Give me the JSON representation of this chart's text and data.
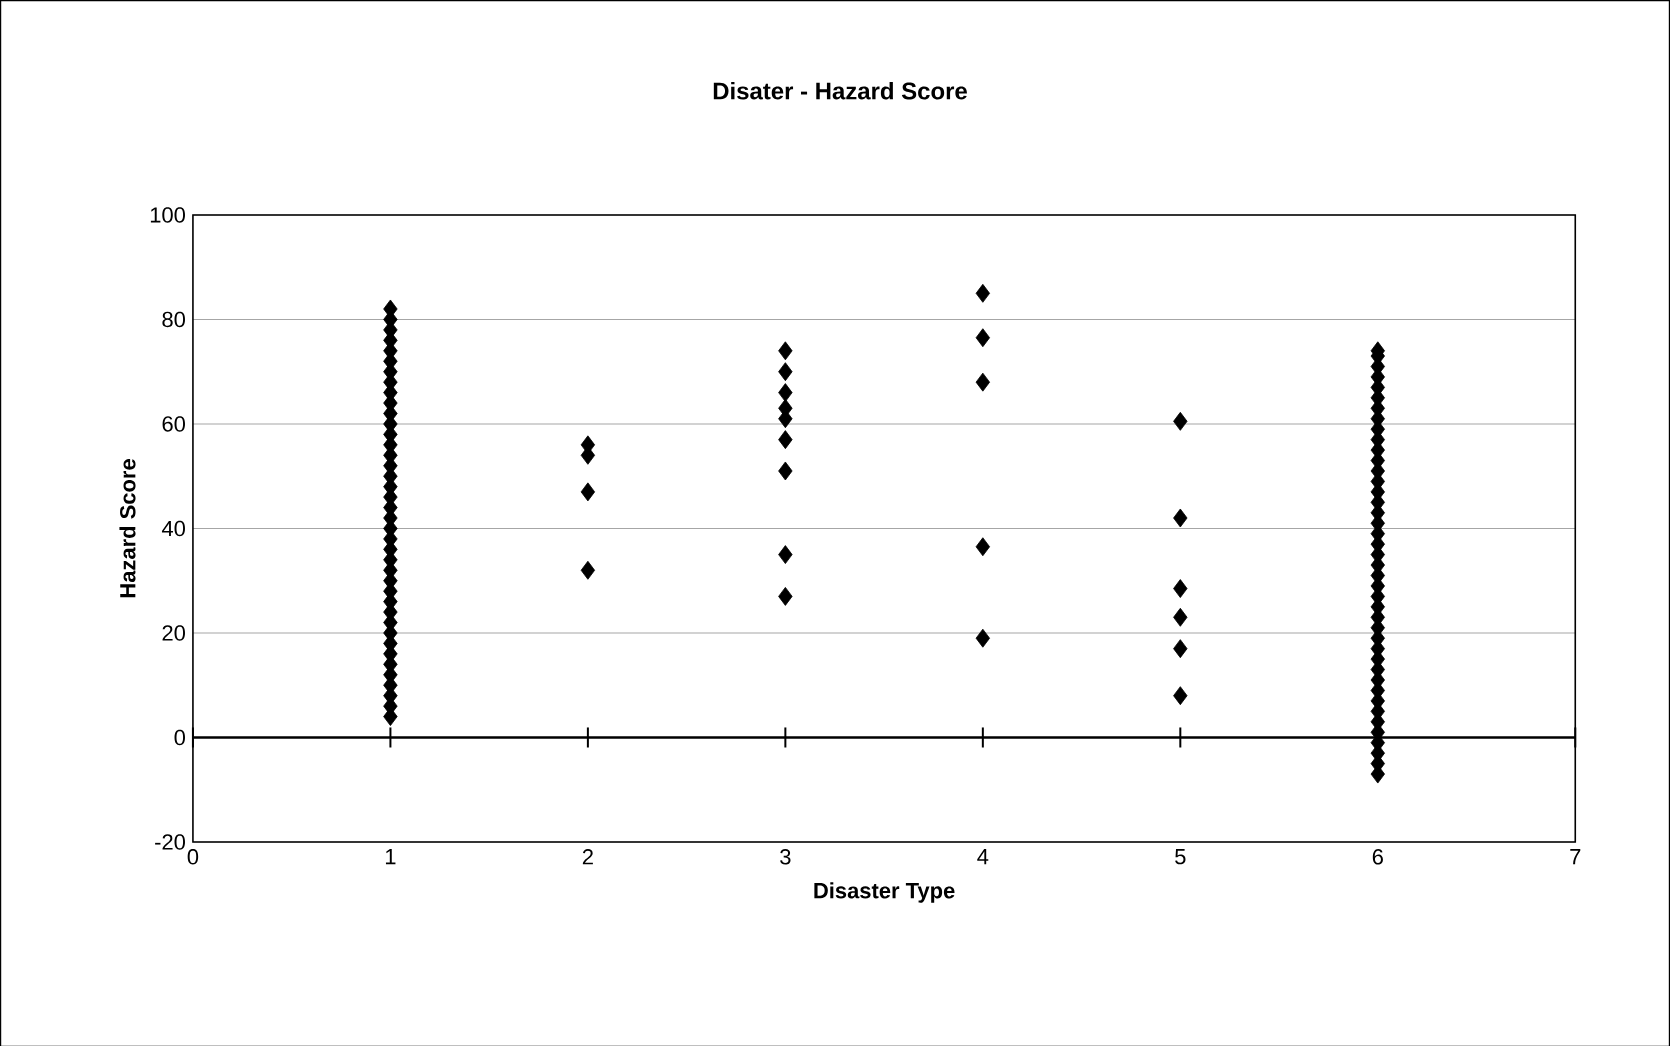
{
  "chart_data": {
    "type": "scatter",
    "title": "Disater - Hazard Score",
    "xlabel": "Disaster Type",
    "ylabel": "Hazard Score",
    "xlim": [
      0,
      7
    ],
    "xticks": [
      0,
      1,
      2,
      3,
      4,
      5,
      6,
      7
    ],
    "ylim": [
      -20,
      100
    ],
    "yticks": [
      -20,
      0,
      20,
      40,
      60,
      80,
      100
    ],
    "grid": "y",
    "marker": "diamond",
    "ref_lines": [
      {
        "axis": "y",
        "value": 0,
        "color": "#000000"
      }
    ],
    "series": [
      {
        "color": "#000000",
        "x": [
          1,
          1,
          1,
          1,
          1,
          1,
          1,
          1,
          1,
          1,
          1,
          1,
          1,
          1,
          1,
          1,
          1,
          1,
          1,
          1,
          1,
          1,
          1,
          1,
          1,
          1,
          1,
          1,
          1,
          1,
          1,
          1,
          1,
          1,
          1,
          1,
          1,
          1,
          1,
          1,
          2,
          2,
          2,
          2,
          3,
          3,
          3,
          3,
          3,
          3,
          3,
          3,
          3,
          4,
          4,
          4,
          4,
          4,
          5,
          5,
          5,
          5,
          5,
          5,
          6,
          6,
          6,
          6,
          6,
          6,
          6,
          6,
          6,
          6,
          6,
          6,
          6,
          6,
          6,
          6,
          6,
          6,
          6,
          6,
          6,
          6,
          6,
          6,
          6,
          6,
          6,
          6,
          6,
          6,
          6,
          6,
          6,
          6,
          6,
          6,
          6,
          6,
          6,
          6,
          6,
          6
        ],
        "values": [
          4,
          6,
          8,
          10,
          12,
          14,
          16,
          18,
          20,
          22,
          24,
          26,
          28,
          30,
          32,
          34,
          36,
          38,
          40,
          42,
          44,
          46,
          48,
          50,
          52,
          54,
          56,
          58,
          60,
          62,
          64,
          66,
          68,
          70,
          72,
          74,
          76,
          78,
          80,
          82,
          56,
          54,
          47,
          32,
          74,
          70,
          66,
          63,
          61,
          57,
          51,
          35,
          27,
          85,
          76.5,
          68,
          36.5,
          19,
          60.5,
          42,
          28.5,
          23,
          17,
          8,
          -7,
          -5,
          -3,
          -1,
          1,
          3,
          5,
          7,
          9,
          11,
          13,
          15,
          17,
          19,
          21,
          23,
          25,
          27,
          29,
          31,
          33,
          35,
          37,
          39,
          41,
          43,
          45,
          47,
          49,
          51,
          53,
          55,
          57,
          59,
          61,
          63,
          65,
          67,
          69,
          71,
          73,
          74
        ]
      }
    ]
  }
}
